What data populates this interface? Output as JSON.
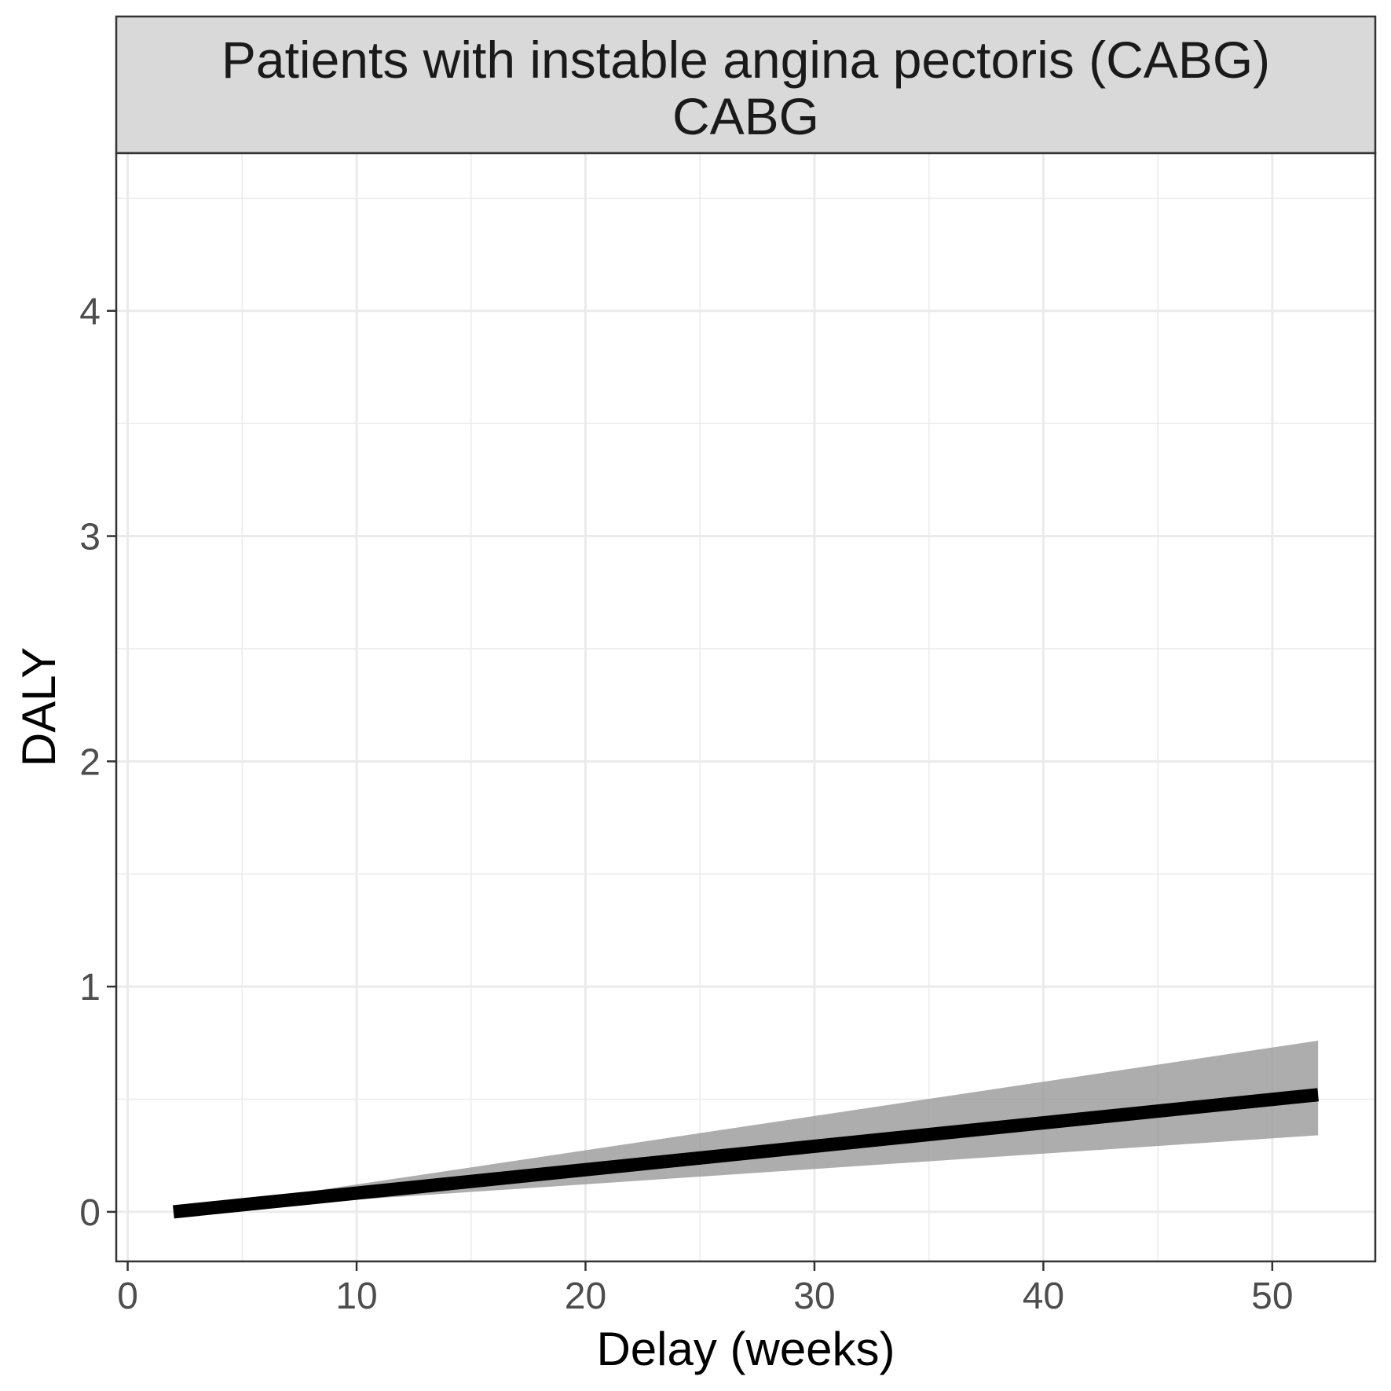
{
  "chart_data": {
    "type": "line",
    "facet_title": "Patients with instable angina pectoris (CABG)",
    "facet_subtitle": "CABG",
    "xlabel": "Delay (weeks)",
    "ylabel": "DALY",
    "xlim": [
      -0.5,
      54.5
    ],
    "ylim": [
      -0.22,
      4.7
    ],
    "x_ticks": [
      0,
      10,
      20,
      30,
      40,
      50
    ],
    "x_tick_labels": [
      "0",
      "10",
      "20",
      "30",
      "40",
      "50"
    ],
    "y_ticks": [
      0,
      1,
      2,
      3,
      4
    ],
    "y_tick_labels": [
      "0",
      "1",
      "2",
      "3",
      "4"
    ],
    "grid": true,
    "series": [
      {
        "x": [
          2,
          52
        ],
        "y": [
          0.0,
          0.52
        ],
        "lower": [
          0.0,
          0.34
        ],
        "upper": [
          0.0,
          0.76
        ]
      }
    ],
    "colors": {
      "line": "#000000",
      "ribbon": "#999999",
      "strip_fill": "#d9d9d9",
      "grid": "#ebebeb",
      "frame": "#333333"
    }
  }
}
